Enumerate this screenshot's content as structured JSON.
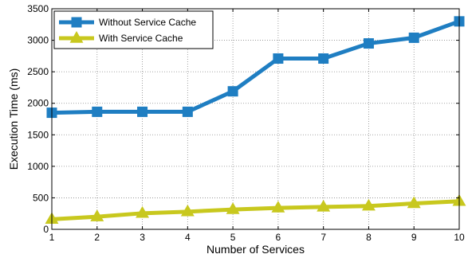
{
  "chart_data": {
    "type": "line",
    "xlabel": "Number of Services",
    "ylabel": "Execution Time (ms)",
    "x": [
      1,
      2,
      3,
      4,
      5,
      6,
      7,
      8,
      9,
      10
    ],
    "xlim": [
      1,
      10
    ],
    "ylim": [
      0,
      3500
    ],
    "xticks": [
      "1",
      "2",
      "3",
      "4",
      "5",
      "6",
      "7",
      "8",
      "9",
      "10"
    ],
    "yticks": [
      "0",
      "500",
      "1000",
      "1500",
      "2000",
      "2500",
      "3000",
      "3500"
    ],
    "grid": true,
    "legend_position": "top-left",
    "series": [
      {
        "name": "Without Service Cache",
        "color": "#1f7ec2",
        "marker": "square",
        "values": [
          1850,
          1865,
          1865,
          1865,
          2190,
          2710,
          2710,
          2950,
          3040,
          3300
        ]
      },
      {
        "name": "With Service Cache",
        "color": "#c8c81e",
        "marker": "triangle",
        "values": [
          160,
          200,
          255,
          280,
          315,
          340,
          355,
          370,
          410,
          445
        ]
      }
    ]
  }
}
